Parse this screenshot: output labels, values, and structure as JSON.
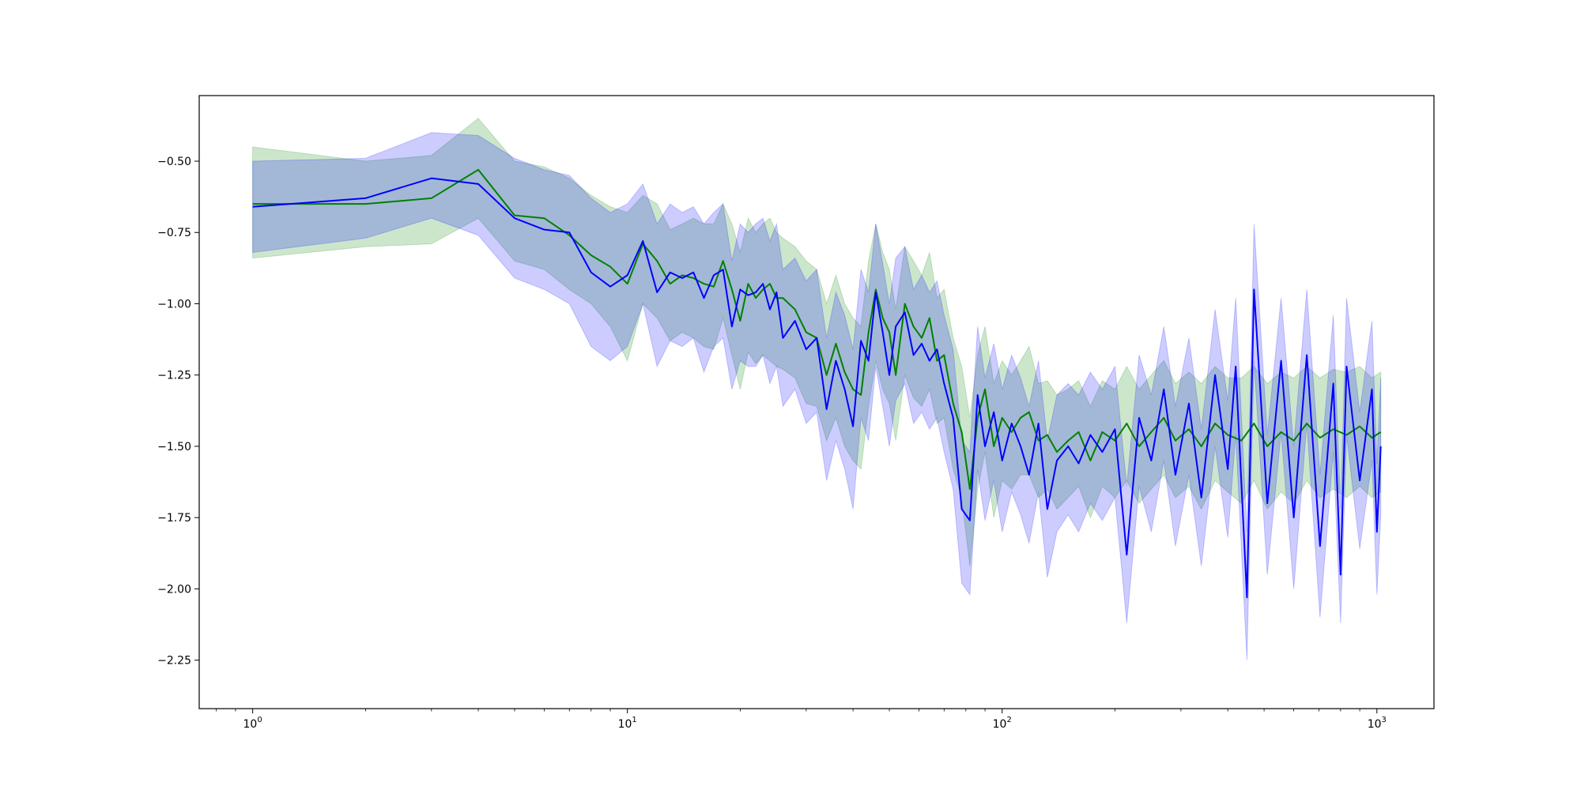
{
  "chart_data": {
    "type": "line",
    "title": "",
    "xlabel": "",
    "ylabel": "",
    "xscale": "log",
    "xlim": [
      0.72,
      1420
    ],
    "ylim": [
      -2.42,
      -0.27
    ],
    "grid": false,
    "legend": null,
    "x_ticks": [
      {
        "value": 1,
        "base": "10",
        "exp": "0"
      },
      {
        "value": 10,
        "base": "10",
        "exp": "1"
      },
      {
        "value": 100,
        "base": "10",
        "exp": "2"
      },
      {
        "value": 1000,
        "base": "10",
        "exp": "3"
      }
    ],
    "y_ticks": [
      {
        "value": -0.5,
        "label": "−0.50"
      },
      {
        "value": -0.75,
        "label": "−0.75"
      },
      {
        "value": -1.0,
        "label": "−1.00"
      },
      {
        "value": -1.25,
        "label": "−1.25"
      },
      {
        "value": -1.5,
        "label": "−1.50"
      },
      {
        "value": -1.75,
        "label": "−1.75"
      },
      {
        "value": -2.0,
        "label": "−2.00"
      },
      {
        "value": -2.25,
        "label": "−2.25"
      }
    ],
    "series": [
      {
        "color": "#008000",
        "band_color": "#008000",
        "band_opacity": 0.2,
        "points": [
          [
            1,
            -0.65,
            -0.84,
            -0.45
          ],
          [
            2,
            -0.65,
            -0.8,
            -0.5
          ],
          [
            3,
            -0.63,
            -0.79,
            -0.48
          ],
          [
            4,
            -0.53,
            -0.7,
            -0.35
          ],
          [
            5,
            -0.69,
            -0.85,
            -0.5
          ],
          [
            6,
            -0.7,
            -0.88,
            -0.52
          ],
          [
            7,
            -0.76,
            -0.95,
            -0.56
          ],
          [
            8,
            -0.83,
            -1.0,
            -0.62
          ],
          [
            9,
            -0.87,
            -1.08,
            -0.66
          ],
          [
            10,
            -0.93,
            -1.2,
            -0.68
          ],
          [
            11,
            -0.79,
            -1.0,
            -0.62
          ],
          [
            12,
            -0.85,
            -1.05,
            -0.65
          ],
          [
            13,
            -0.93,
            -1.13,
            -0.74
          ],
          [
            14,
            -0.9,
            -1.1,
            -0.72
          ],
          [
            15,
            -0.91,
            -1.12,
            -0.7
          ],
          [
            16,
            -0.93,
            -1.15,
            -0.72
          ],
          [
            17,
            -0.94,
            -1.16,
            -0.72
          ],
          [
            18,
            -0.85,
            -1.05,
            -0.65
          ],
          [
            19,
            -0.95,
            -1.18,
            -0.72
          ],
          [
            20,
            -1.06,
            -1.3,
            -0.82
          ],
          [
            21,
            -0.93,
            -1.17,
            -0.7
          ],
          [
            22,
            -0.98,
            -1.21,
            -0.75
          ],
          [
            23,
            -0.95,
            -1.18,
            -0.72
          ],
          [
            24,
            -0.93,
            -1.2,
            -0.7
          ],
          [
            25,
            -0.98,
            -1.22,
            -0.75
          ],
          [
            26,
            -0.98,
            -1.23,
            -0.77
          ],
          [
            28,
            -1.02,
            -1.26,
            -0.8
          ],
          [
            30,
            -1.1,
            -1.35,
            -0.85
          ],
          [
            32,
            -1.12,
            -1.36,
            -0.88
          ],
          [
            34,
            -1.25,
            -1.48,
            -1.0
          ],
          [
            36,
            -1.14,
            -1.4,
            -0.9
          ],
          [
            38,
            -1.24,
            -1.5,
            -1.0
          ],
          [
            40,
            -1.3,
            -1.55,
            -1.05
          ],
          [
            42,
            -1.32,
            -1.58,
            -1.08
          ],
          [
            44,
            -1.1,
            -1.36,
            -0.85
          ],
          [
            46,
            -0.95,
            -1.2,
            -0.72
          ],
          [
            48,
            -1.05,
            -1.3,
            -0.82
          ],
          [
            50,
            -1.1,
            -1.35,
            -0.88
          ],
          [
            52,
            -1.25,
            -1.48,
            -1.02
          ],
          [
            55,
            -1.0,
            -1.25,
            -0.8
          ],
          [
            58,
            -1.08,
            -1.33,
            -0.85
          ],
          [
            61,
            -1.12,
            -1.36,
            -0.9
          ],
          [
            64,
            -1.05,
            -1.3,
            -0.82
          ],
          [
            67,
            -1.2,
            -1.42,
            -0.98
          ],
          [
            70,
            -1.18,
            -1.4,
            -0.95
          ],
          [
            74,
            -1.35,
            -1.58,
            -1.12
          ],
          [
            78,
            -1.45,
            -1.68,
            -1.22
          ],
          [
            82,
            -1.65,
            -1.92,
            -1.4
          ],
          [
            86,
            -1.4,
            -1.65,
            -1.18
          ],
          [
            90,
            -1.3,
            -1.52,
            -1.08
          ],
          [
            95,
            -1.5,
            -1.75,
            -1.28
          ],
          [
            100,
            -1.4,
            -1.62,
            -1.2
          ],
          [
            106,
            -1.45,
            -1.65,
            -1.25
          ],
          [
            112,
            -1.4,
            -1.6,
            -1.2
          ],
          [
            118,
            -1.38,
            -1.6,
            -1.15
          ],
          [
            125,
            -1.48,
            -1.68,
            -1.28
          ],
          [
            132,
            -1.46,
            -1.65,
            -1.27
          ],
          [
            140,
            -1.52,
            -1.72,
            -1.32
          ],
          [
            150,
            -1.48,
            -1.68,
            -1.3
          ],
          [
            160,
            -1.45,
            -1.64,
            -1.27
          ],
          [
            172,
            -1.55,
            -1.75,
            -1.36
          ],
          [
            185,
            -1.45,
            -1.64,
            -1.27
          ],
          [
            200,
            -1.48,
            -1.68,
            -1.3
          ],
          [
            215,
            -1.42,
            -1.62,
            -1.22
          ],
          [
            232,
            -1.5,
            -1.7,
            -1.3
          ],
          [
            250,
            -1.45,
            -1.65,
            -1.25
          ],
          [
            270,
            -1.4,
            -1.6,
            -1.2
          ],
          [
            290,
            -1.48,
            -1.68,
            -1.28
          ],
          [
            315,
            -1.44,
            -1.64,
            -1.24
          ],
          [
            340,
            -1.5,
            -1.72,
            -1.28
          ],
          [
            370,
            -1.42,
            -1.62,
            -1.22
          ],
          [
            400,
            -1.46,
            -1.66,
            -1.26
          ],
          [
            435,
            -1.48,
            -1.7,
            -1.26
          ],
          [
            470,
            -1.42,
            -1.62,
            -1.22
          ],
          [
            510,
            -1.5,
            -1.72,
            -1.28
          ],
          [
            555,
            -1.45,
            -1.66,
            -1.24
          ],
          [
            600,
            -1.48,
            -1.7,
            -1.26
          ],
          [
            650,
            -1.42,
            -1.62,
            -1.22
          ],
          [
            705,
            -1.47,
            -1.68,
            -1.26
          ],
          [
            765,
            -1.44,
            -1.65,
            -1.23
          ],
          [
            830,
            -1.46,
            -1.68,
            -1.24
          ],
          [
            900,
            -1.43,
            -1.64,
            -1.22
          ],
          [
            970,
            -1.47,
            -1.68,
            -1.26
          ],
          [
            1024,
            -1.45,
            -1.66,
            -1.24
          ]
        ]
      },
      {
        "color": "#0000ff",
        "band_color": "#0000ff",
        "band_opacity": 0.2,
        "points": [
          [
            1,
            -0.66,
            -0.82,
            -0.5
          ],
          [
            2,
            -0.63,
            -0.77,
            -0.49
          ],
          [
            3,
            -0.56,
            -0.7,
            -0.4
          ],
          [
            4,
            -0.58,
            -0.76,
            -0.41
          ],
          [
            5,
            -0.7,
            -0.91,
            -0.49
          ],
          [
            6,
            -0.74,
            -0.95,
            -0.53
          ],
          [
            7,
            -0.75,
            -1.0,
            -0.55
          ],
          [
            8,
            -0.89,
            -1.15,
            -0.63
          ],
          [
            9,
            -0.94,
            -1.2,
            -0.68
          ],
          [
            10,
            -0.9,
            -1.15,
            -0.65
          ],
          [
            11,
            -0.78,
            -1.0,
            -0.58
          ],
          [
            12,
            -0.96,
            -1.22,
            -0.72
          ],
          [
            13,
            -0.89,
            -1.13,
            -0.65
          ],
          [
            14,
            -0.91,
            -1.15,
            -0.68
          ],
          [
            15,
            -0.89,
            -1.12,
            -0.66
          ],
          [
            16,
            -0.98,
            -1.24,
            -0.72
          ],
          [
            17,
            -0.9,
            -1.15,
            -0.68
          ],
          [
            18,
            -0.88,
            -1.12,
            -0.65
          ],
          [
            19,
            -1.08,
            -1.3,
            -0.85
          ],
          [
            20,
            -0.95,
            -1.2,
            -0.72
          ],
          [
            21,
            -0.97,
            -1.22,
            -0.75
          ],
          [
            22,
            -0.96,
            -1.22,
            -0.72
          ],
          [
            23,
            -0.93,
            -1.18,
            -0.7
          ],
          [
            24,
            -1.02,
            -1.28,
            -0.78
          ],
          [
            25,
            -0.96,
            -1.22,
            -0.72
          ],
          [
            26,
            -1.12,
            -1.36,
            -0.88
          ],
          [
            28,
            -1.06,
            -1.3,
            -0.84
          ],
          [
            30,
            -1.16,
            -1.42,
            -0.92
          ],
          [
            32,
            -1.12,
            -1.38,
            -0.88
          ],
          [
            34,
            -1.37,
            -1.62,
            -1.12
          ],
          [
            36,
            -1.2,
            -1.48,
            -0.96
          ],
          [
            38,
            -1.3,
            -1.58,
            -1.04
          ],
          [
            40,
            -1.43,
            -1.72,
            -1.16
          ],
          [
            42,
            -1.13,
            -1.4,
            -0.88
          ],
          [
            44,
            -1.2,
            -1.48,
            -0.96
          ],
          [
            46,
            -0.96,
            -1.22,
            -0.72
          ],
          [
            48,
            -1.1,
            -1.36,
            -0.86
          ],
          [
            50,
            -1.25,
            -1.5,
            -1.0
          ],
          [
            52,
            -1.08,
            -1.34,
            -0.84
          ],
          [
            55,
            -1.03,
            -1.28,
            -0.8
          ],
          [
            58,
            -1.18,
            -1.42,
            -0.95
          ],
          [
            61,
            -1.14,
            -1.38,
            -0.9
          ],
          [
            64,
            -1.2,
            -1.44,
            -0.96
          ],
          [
            67,
            -1.16,
            -1.4,
            -0.92
          ],
          [
            70,
            -1.28,
            -1.52,
            -1.04
          ],
          [
            74,
            -1.4,
            -1.65,
            -1.16
          ],
          [
            78,
            -1.72,
            -1.98,
            -1.48
          ],
          [
            82,
            -1.76,
            -2.02,
            -1.52
          ],
          [
            86,
            -1.32,
            -1.58,
            -1.08
          ],
          [
            90,
            -1.5,
            -1.76,
            -1.26
          ],
          [
            95,
            -1.38,
            -1.62,
            -1.14
          ],
          [
            100,
            -1.55,
            -1.8,
            -1.3
          ],
          [
            106,
            -1.42,
            -1.66,
            -1.18
          ],
          [
            112,
            -1.5,
            -1.74,
            -1.26
          ],
          [
            118,
            -1.6,
            -1.84,
            -1.36
          ],
          [
            125,
            -1.42,
            -1.66,
            -1.2
          ],
          [
            132,
            -1.72,
            -1.96,
            -1.48
          ],
          [
            140,
            -1.55,
            -1.8,
            -1.32
          ],
          [
            150,
            -1.5,
            -1.74,
            -1.28
          ],
          [
            160,
            -1.56,
            -1.8,
            -1.32
          ],
          [
            172,
            -1.46,
            -1.7,
            -1.24
          ],
          [
            185,
            -1.52,
            -1.76,
            -1.3
          ],
          [
            200,
            -1.44,
            -1.68,
            -1.22
          ],
          [
            215,
            -1.88,
            -2.12,
            -1.64
          ],
          [
            232,
            -1.4,
            -1.64,
            -1.18
          ],
          [
            250,
            -1.55,
            -1.8,
            -1.32
          ],
          [
            270,
            -1.3,
            -1.55,
            -1.08
          ],
          [
            290,
            -1.6,
            -1.85,
            -1.36
          ],
          [
            315,
            -1.35,
            -1.6,
            -1.12
          ],
          [
            340,
            -1.68,
            -1.92,
            -1.44
          ],
          [
            370,
            -1.25,
            -1.5,
            -1.02
          ],
          [
            400,
            -1.58,
            -1.82,
            -1.34
          ],
          [
            420,
            -1.22,
            -1.46,
            -0.98
          ],
          [
            450,
            -2.03,
            -2.25,
            -1.8
          ],
          [
            470,
            -0.95,
            -1.2,
            -0.72
          ],
          [
            510,
            -1.7,
            -1.95,
            -1.46
          ],
          [
            555,
            -1.2,
            -1.45,
            -0.98
          ],
          [
            600,
            -1.75,
            -2.0,
            -1.5
          ],
          [
            650,
            -1.18,
            -1.42,
            -0.95
          ],
          [
            705,
            -1.85,
            -2.1,
            -1.6
          ],
          [
            765,
            -1.28,
            -1.52,
            -1.04
          ],
          [
            800,
            -1.95,
            -2.12,
            -1.72
          ],
          [
            830,
            -1.22,
            -1.46,
            -0.98
          ],
          [
            900,
            -1.62,
            -1.86,
            -1.38
          ],
          [
            970,
            -1.3,
            -1.55,
            -1.06
          ],
          [
            1000,
            -1.8,
            -2.02,
            -1.56
          ],
          [
            1024,
            -1.5,
            -1.74,
            -1.26
          ]
        ]
      }
    ]
  }
}
